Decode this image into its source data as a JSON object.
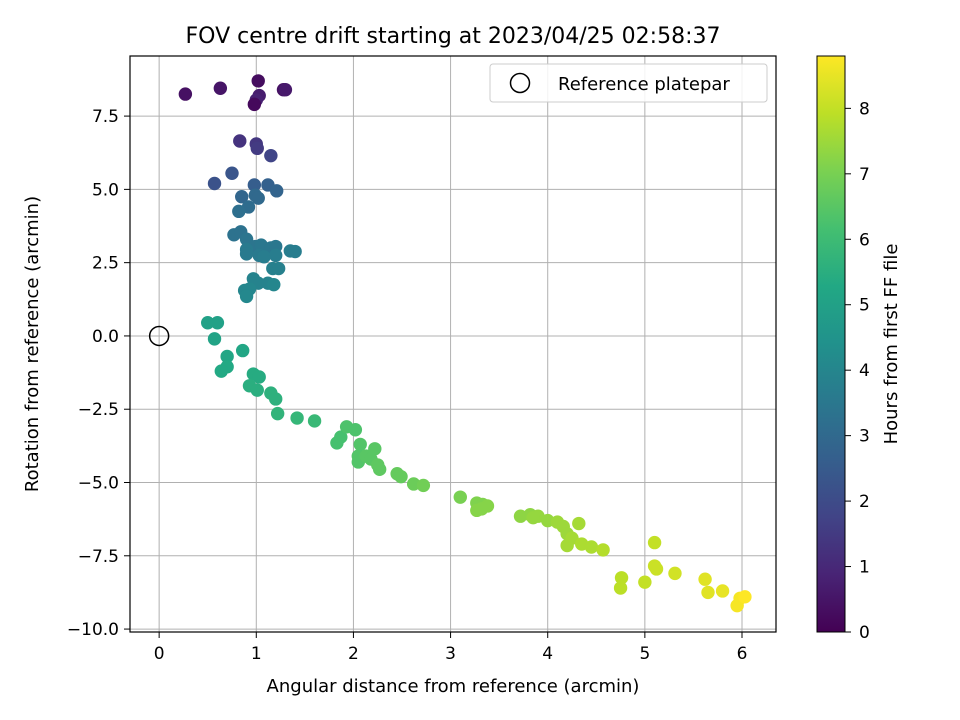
{
  "chart_data": {
    "type": "scatter",
    "title": "FOV centre drift starting at 2023/04/25 02:58:37",
    "xlabel": "Angular distance from reference (arcmin)",
    "ylabel": "Rotation from reference (arcmin)",
    "xlim": [
      -0.3,
      6.35
    ],
    "ylim": [
      -10.1,
      9.55
    ],
    "xticks": [
      0,
      1,
      2,
      3,
      4,
      5,
      6
    ],
    "xtick_labels": [
      "0",
      "1",
      "2",
      "3",
      "4",
      "5",
      "6"
    ],
    "yticks": [
      -10.0,
      -7.5,
      -5.0,
      -2.5,
      0.0,
      2.5,
      5.0,
      7.5
    ],
    "ytick_labels": [
      "−10.0",
      "−7.5",
      "−5.0",
      "−2.5",
      "0.0",
      "2.5",
      "5.0",
      "7.5"
    ],
    "grid": true,
    "colormap": "viridis",
    "colorbar": {
      "label": "Hours from first FF file",
      "range": [
        0,
        8.8
      ],
      "ticks": [
        0,
        1,
        2,
        3,
        4,
        5,
        6,
        7,
        8
      ],
      "tick_labels": [
        "0",
        "1",
        "2",
        "3",
        "4",
        "5",
        "6",
        "7",
        "8"
      ]
    },
    "legend": {
      "position": "top-right",
      "label": "Reference platepar"
    },
    "reference_point": {
      "x": 0,
      "y": 0
    },
    "points": [
      {
        "x": 0.27,
        "y": 8.25,
        "hours": 0.4
      },
      {
        "x": 0.63,
        "y": 8.45,
        "hours": 0.5
      },
      {
        "x": 1.02,
        "y": 8.7,
        "hours": 0.3
      },
      {
        "x": 1.28,
        "y": 8.4,
        "hours": 0.4
      },
      {
        "x": 1.3,
        "y": 8.4,
        "hours": 0.6
      },
      {
        "x": 1.03,
        "y": 8.2,
        "hours": 0.7
      },
      {
        "x": 1.0,
        "y": 8.05,
        "hours": 0.8
      },
      {
        "x": 0.98,
        "y": 7.9,
        "hours": 0.2
      },
      {
        "x": 0.83,
        "y": 6.65,
        "hours": 1.3
      },
      {
        "x": 1.0,
        "y": 6.55,
        "hours": 1.4
      },
      {
        "x": 1.01,
        "y": 6.4,
        "hours": 1.5
      },
      {
        "x": 1.15,
        "y": 6.15,
        "hours": 1.8
      },
      {
        "x": 0.57,
        "y": 5.2,
        "hours": 2.2
      },
      {
        "x": 0.75,
        "y": 5.55,
        "hours": 2.3
      },
      {
        "x": 0.98,
        "y": 5.15,
        "hours": 2.6
      },
      {
        "x": 1.12,
        "y": 5.15,
        "hours": 2.7
      },
      {
        "x": 1.21,
        "y": 4.95,
        "hours": 2.8
      },
      {
        "x": 0.85,
        "y": 4.75,
        "hours": 2.9
      },
      {
        "x": 0.99,
        "y": 4.8,
        "hours": 3.0
      },
      {
        "x": 1.02,
        "y": 4.7,
        "hours": 3.0
      },
      {
        "x": 0.92,
        "y": 4.4,
        "hours": 3.1
      },
      {
        "x": 0.82,
        "y": 4.25,
        "hours": 3.2
      },
      {
        "x": 0.77,
        "y": 3.45,
        "hours": 3.3
      },
      {
        "x": 0.84,
        "y": 3.55,
        "hours": 3.3
      },
      {
        "x": 0.9,
        "y": 3.3,
        "hours": 3.4
      },
      {
        "x": 0.99,
        "y": 3.05,
        "hours": 3.4
      },
      {
        "x": 1.05,
        "y": 3.1,
        "hours": 3.5
      },
      {
        "x": 1.15,
        "y": 3.0,
        "hours": 3.5
      },
      {
        "x": 1.2,
        "y": 3.05,
        "hours": 3.5
      },
      {
        "x": 0.9,
        "y": 2.95,
        "hours": 3.6
      },
      {
        "x": 0.9,
        "y": 2.8,
        "hours": 3.6
      },
      {
        "x": 1.03,
        "y": 2.75,
        "hours": 3.6
      },
      {
        "x": 1.08,
        "y": 2.7,
        "hours": 3.7
      },
      {
        "x": 1.2,
        "y": 2.75,
        "hours": 3.7
      },
      {
        "x": 1.35,
        "y": 2.9,
        "hours": 3.7
      },
      {
        "x": 1.4,
        "y": 2.88,
        "hours": 3.7
      },
      {
        "x": 1.17,
        "y": 2.3,
        "hours": 3.8
      },
      {
        "x": 1.23,
        "y": 2.3,
        "hours": 3.8
      },
      {
        "x": 0.97,
        "y": 1.95,
        "hours": 3.9
      },
      {
        "x": 1.02,
        "y": 1.8,
        "hours": 3.9
      },
      {
        "x": 1.12,
        "y": 1.8,
        "hours": 3.9
      },
      {
        "x": 1.18,
        "y": 1.75,
        "hours": 4.0
      },
      {
        "x": 0.88,
        "y": 1.55,
        "hours": 4.0
      },
      {
        "x": 0.93,
        "y": 1.6,
        "hours": 4.0
      },
      {
        "x": 0.9,
        "y": 1.35,
        "hours": 4.1
      },
      {
        "x": 0.5,
        "y": 0.45,
        "hours": 5.0
      },
      {
        "x": 0.6,
        "y": 0.45,
        "hours": 5.0
      },
      {
        "x": 0.57,
        "y": -0.1,
        "hours": 5.1
      },
      {
        "x": 0.7,
        "y": -0.7,
        "hours": 5.2
      },
      {
        "x": 0.86,
        "y": -0.5,
        "hours": 5.2
      },
      {
        "x": 0.7,
        "y": -1.05,
        "hours": 5.3
      },
      {
        "x": 0.64,
        "y": -1.2,
        "hours": 5.3
      },
      {
        "x": 0.97,
        "y": -1.3,
        "hours": 5.4
      },
      {
        "x": 1.03,
        "y": -1.4,
        "hours": 5.4
      },
      {
        "x": 0.93,
        "y": -1.7,
        "hours": 5.5
      },
      {
        "x": 1.01,
        "y": -1.85,
        "hours": 5.5
      },
      {
        "x": 1.15,
        "y": -1.95,
        "hours": 5.6
      },
      {
        "x": 1.2,
        "y": -2.15,
        "hours": 5.6
      },
      {
        "x": 1.22,
        "y": -2.65,
        "hours": 5.7
      },
      {
        "x": 1.42,
        "y": -2.8,
        "hours": 5.8
      },
      {
        "x": 1.6,
        "y": -2.9,
        "hours": 5.9
      },
      {
        "x": 1.83,
        "y": -3.65,
        "hours": 6.2
      },
      {
        "x": 1.87,
        "y": -3.45,
        "hours": 6.2
      },
      {
        "x": 1.93,
        "y": -3.1,
        "hours": 6.3
      },
      {
        "x": 2.02,
        "y": -3.2,
        "hours": 6.3
      },
      {
        "x": 2.07,
        "y": -3.7,
        "hours": 6.4
      },
      {
        "x": 2.05,
        "y": -4.1,
        "hours": 6.4
      },
      {
        "x": 2.05,
        "y": -4.3,
        "hours": 6.4
      },
      {
        "x": 2.13,
        "y": -4.1,
        "hours": 6.5
      },
      {
        "x": 2.18,
        "y": -4.2,
        "hours": 6.5
      },
      {
        "x": 2.22,
        "y": -3.85,
        "hours": 6.5
      },
      {
        "x": 2.25,
        "y": -4.4,
        "hours": 6.6
      },
      {
        "x": 2.27,
        "y": -4.55,
        "hours": 6.6
      },
      {
        "x": 2.45,
        "y": -4.7,
        "hours": 6.7
      },
      {
        "x": 2.49,
        "y": -4.8,
        "hours": 6.7
      },
      {
        "x": 2.62,
        "y": -5.05,
        "hours": 6.8
      },
      {
        "x": 2.72,
        "y": -5.1,
        "hours": 6.9
      },
      {
        "x": 3.1,
        "y": -5.5,
        "hours": 7.0
      },
      {
        "x": 3.27,
        "y": -5.7,
        "hours": 7.1
      },
      {
        "x": 3.33,
        "y": -5.75,
        "hours": 7.1
      },
      {
        "x": 3.38,
        "y": -5.8,
        "hours": 7.2
      },
      {
        "x": 3.27,
        "y": -5.95,
        "hours": 7.2
      },
      {
        "x": 3.32,
        "y": -5.9,
        "hours": 7.2
      },
      {
        "x": 3.72,
        "y": -6.15,
        "hours": 7.3
      },
      {
        "x": 3.82,
        "y": -6.1,
        "hours": 7.3
      },
      {
        "x": 3.9,
        "y": -6.15,
        "hours": 7.4
      },
      {
        "x": 3.85,
        "y": -6.2,
        "hours": 7.4
      },
      {
        "x": 4.0,
        "y": -6.3,
        "hours": 7.4
      },
      {
        "x": 4.1,
        "y": -6.35,
        "hours": 7.5
      },
      {
        "x": 4.16,
        "y": -6.5,
        "hours": 7.5
      },
      {
        "x": 4.2,
        "y": -6.75,
        "hours": 7.5
      },
      {
        "x": 4.25,
        "y": -6.9,
        "hours": 7.6
      },
      {
        "x": 4.32,
        "y": -6.4,
        "hours": 7.6
      },
      {
        "x": 4.2,
        "y": -7.15,
        "hours": 7.6
      },
      {
        "x": 4.35,
        "y": -7.1,
        "hours": 7.7
      },
      {
        "x": 4.45,
        "y": -7.2,
        "hours": 7.7
      },
      {
        "x": 4.57,
        "y": -7.3,
        "hours": 7.8
      },
      {
        "x": 4.76,
        "y": -8.25,
        "hours": 7.9
      },
      {
        "x": 4.75,
        "y": -8.6,
        "hours": 7.9
      },
      {
        "x": 5.0,
        "y": -8.4,
        "hours": 8.0
      },
      {
        "x": 5.1,
        "y": -7.05,
        "hours": 8.0
      },
      {
        "x": 5.1,
        "y": -7.85,
        "hours": 8.1
      },
      {
        "x": 5.12,
        "y": -7.95,
        "hours": 8.1
      },
      {
        "x": 5.31,
        "y": -8.1,
        "hours": 8.2
      },
      {
        "x": 5.62,
        "y": -8.3,
        "hours": 8.4
      },
      {
        "x": 5.65,
        "y": -8.75,
        "hours": 8.4
      },
      {
        "x": 5.8,
        "y": -8.7,
        "hours": 8.5
      },
      {
        "x": 5.95,
        "y": -9.2,
        "hours": 8.7
      },
      {
        "x": 5.98,
        "y": -8.95,
        "hours": 8.7
      },
      {
        "x": 6.03,
        "y": -8.9,
        "hours": 8.8
      }
    ]
  }
}
